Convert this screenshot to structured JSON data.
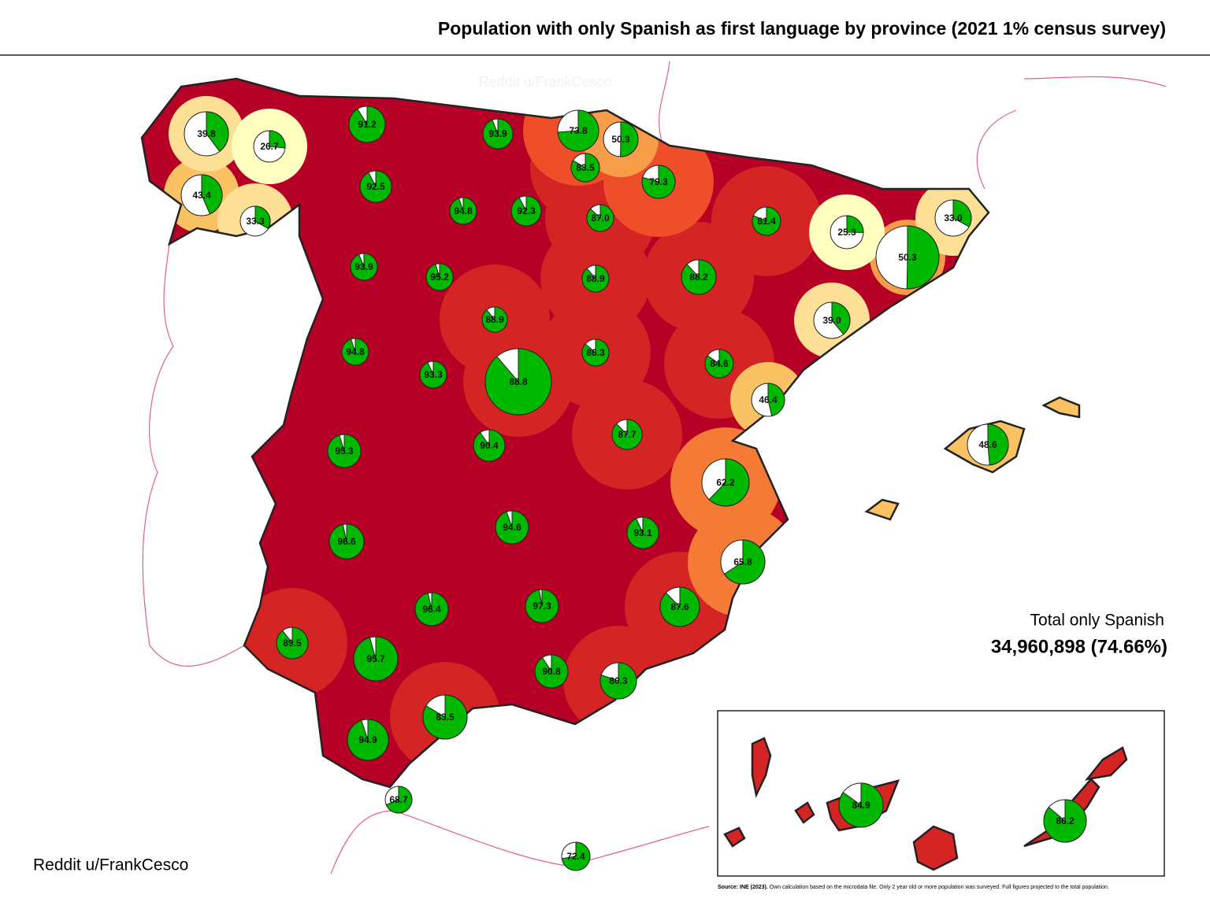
{
  "chart_data": {
    "type": "pie-map",
    "title": "Population with only Spanish as first language by province (2021 1% census survey)",
    "credit": "Reddit u/FrankCesco",
    "total_label": "Total only Spanish",
    "total_value": "34,960,898 (74.66%)",
    "source_bold": "Source: INE (2023).",
    "source_note": "Own calculation based on the microdata file. Only 2 year old or more population was surveyed. Full figures projected to the total population.",
    "values": [
      39.8,
      26.7,
      43.4,
      33.3,
      91.2,
      92.5,
      93.9,
      73.8,
      50.3,
      83.5,
      79.3,
      94.8,
      92.3,
      87.0,
      81.4,
      25.3,
      33.0,
      50.3,
      93.9,
      95.2,
      88.9,
      88.2,
      88.9,
      39.0,
      94.8,
      86.3,
      84.6,
      93.3,
      88.8,
      46.4,
      87.7,
      95.3,
      90.4,
      48.6,
      62.2,
      94.6,
      93.1,
      96.6,
      65.8,
      87.6,
      96.4,
      97.3,
      89.5,
      95.7,
      90.8,
      80.3,
      83.5,
      94.9,
      68.7,
      72.4,
      84.9,
      86.2
    ],
    "value_labels": [
      "39.8",
      "26.7",
      "43.4",
      "33.3",
      "91.2",
      "92.5",
      "93.9",
      "73.8",
      "50.3",
      "83.5",
      "79.3",
      "94.8",
      "92.3",
      "87.0",
      "81.4",
      "25.3",
      "33.0",
      "50.3",
      "93.9",
      "95.2",
      "88.9",
      "88.2",
      "88.9",
      "39.0",
      "94.8",
      "86.3",
      "84.6",
      "93.3",
      "88.8",
      "46.4",
      "87.7",
      "95.3",
      "90.4",
      "48.6",
      "62.2",
      "94.6",
      "93.1",
      "96.6",
      "65.8",
      "87.6",
      "96.4",
      "97.3",
      "89.5",
      "95.7",
      "90.8",
      "80.3",
      "83.5",
      "94.9",
      "68.7",
      "72.4",
      "84.9",
      "86.2"
    ]
  }
}
